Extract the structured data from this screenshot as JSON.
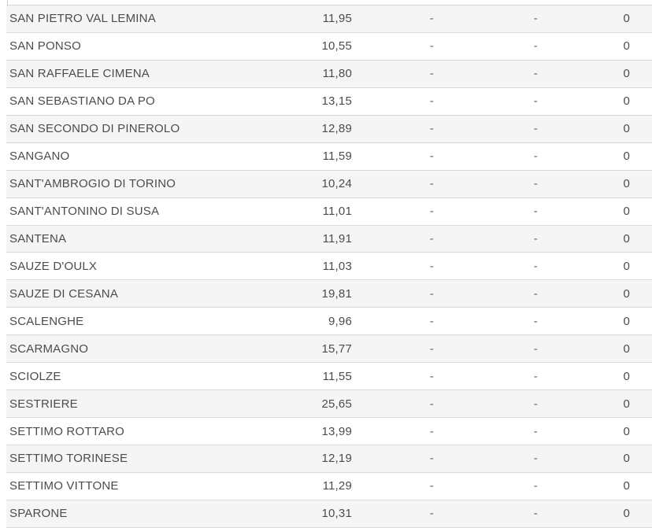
{
  "colors": {
    "row_alt_background": "#f5f5f5",
    "row_background": "#ffffff",
    "row_border": "#d9d9d9",
    "text": "#4c4c4f"
  },
  "table": {
    "rows": [
      {
        "name": "SAN PIETRO VAL LEMINA",
        "rate": "11,95",
        "dash1": "-",
        "dash2": "-",
        "count": "0"
      },
      {
        "name": "SAN PONSO",
        "rate": "10,55",
        "dash1": "-",
        "dash2": "-",
        "count": "0"
      },
      {
        "name": "SAN RAFFAELE CIMENA",
        "rate": "11,80",
        "dash1": "-",
        "dash2": "-",
        "count": "0"
      },
      {
        "name": "SAN SEBASTIANO DA PO",
        "rate": "13,15",
        "dash1": "-",
        "dash2": "-",
        "count": "0"
      },
      {
        "name": "SAN SECONDO DI PINEROLO",
        "rate": "12,89",
        "dash1": "-",
        "dash2": "-",
        "count": "0"
      },
      {
        "name": "SANGANO",
        "rate": "11,59",
        "dash1": "-",
        "dash2": "-",
        "count": "0"
      },
      {
        "name": "SANT'AMBROGIO DI TORINO",
        "rate": "10,24",
        "dash1": "-",
        "dash2": "-",
        "count": "0"
      },
      {
        "name": "SANT'ANTONINO DI SUSA",
        "rate": "11,01",
        "dash1": "-",
        "dash2": "-",
        "count": "0"
      },
      {
        "name": "SANTENA",
        "rate": "11,91",
        "dash1": "-",
        "dash2": "-",
        "count": "0"
      },
      {
        "name": "SAUZE D'OULX",
        "rate": "11,03",
        "dash1": "-",
        "dash2": "-",
        "count": "0"
      },
      {
        "name": "SAUZE DI CESANA",
        "rate": "19,81",
        "dash1": "-",
        "dash2": "-",
        "count": "0"
      },
      {
        "name": "SCALENGHE",
        "rate": "9,96",
        "dash1": "-",
        "dash2": "-",
        "count": "0"
      },
      {
        "name": "SCARMAGNO",
        "rate": "15,77",
        "dash1": "-",
        "dash2": "-",
        "count": "0"
      },
      {
        "name": "SCIOLZE",
        "rate": "11,55",
        "dash1": "-",
        "dash2": "-",
        "count": "0"
      },
      {
        "name": "SESTRIERE",
        "rate": "25,65",
        "dash1": "-",
        "dash2": "-",
        "count": "0"
      },
      {
        "name": "SETTIMO ROTTARO",
        "rate": "13,99",
        "dash1": "-",
        "dash2": "-",
        "count": "0"
      },
      {
        "name": "SETTIMO TORINESE",
        "rate": "12,19",
        "dash1": "-",
        "dash2": "-",
        "count": "0"
      },
      {
        "name": "SETTIMO VITTONE",
        "rate": "11,29",
        "dash1": "-",
        "dash2": "-",
        "count": "0"
      },
      {
        "name": "SPARONE",
        "rate": "10,31",
        "dash1": "-",
        "dash2": "-",
        "count": "0"
      }
    ]
  }
}
